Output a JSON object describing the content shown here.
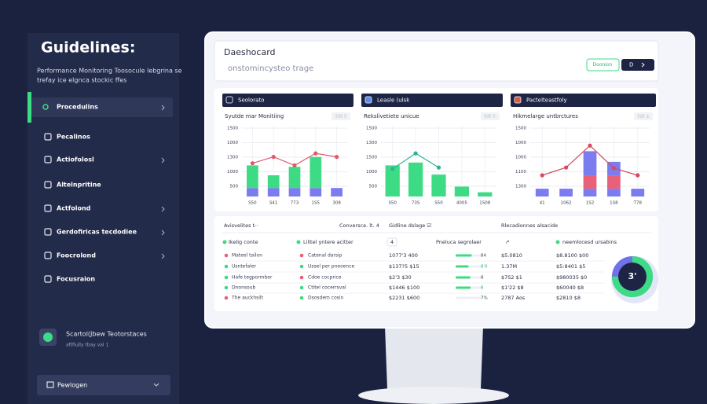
{
  "sidebar": {
    "title": "Guidelines:",
    "subtitle": [
      "Performance Monitoring Toosocule lebgrina se",
      "trefay ice elgnca stockic ffes"
    ],
    "items": [
      "Procedulins",
      "Pecalinos",
      "Actiofolosl",
      "Altelnpritine",
      "Actfolond",
      "Gerdofiricas tecdodiee",
      "Foocrolond",
      "Focusraion"
    ],
    "card": {
      "title": "Scartol(Jbew Teotorstaces",
      "subtitle": "aftfiully tbay val 1"
    },
    "footer_button": "Pewlogen"
  },
  "header": {
    "title": "Daeshocard",
    "subtitle": "onstomincysteo trage",
    "buttons": [
      "Doonion",
      "D"
    ]
  },
  "panels": [
    {
      "tab": "Seolorato",
      "title": "Syutde mar Monitiing",
      "badge": "5d5 5",
      "ylabels": [
        "1500",
        "1000",
        "1300",
        "1000",
        "500"
      ],
      "categories": [
        "S50",
        "S41",
        "773",
        "1S5",
        "308"
      ],
      "ylim": [
        0,
        100
      ],
      "bars": [
        {
          "color": "#7b7cf0",
          "values": [
            12,
            12,
            12,
            12,
            12
          ]
        },
        {
          "color": "#3ddc84",
          "values": [
            32,
            18,
            30,
            44,
            0
          ]
        }
      ],
      "line": {
        "color": "#e05a6a",
        "values": [
          47,
          56,
          44,
          61,
          56
        ]
      }
    },
    {
      "tab": "Leasle (ulsk",
      "title": "Rekslivetiete unicue",
      "badge": "5d5 5:",
      "ylabels": [
        "1500",
        "1300",
        "1500",
        "1000",
        "500"
      ],
      "categories": [
        "S50",
        "73S",
        "S50",
        "4005",
        "1S08"
      ],
      "ylim": [
        0,
        100
      ],
      "bars": [
        {
          "color": "#3ddc84",
          "values": [
            44,
            48,
            31,
            14,
            6
          ]
        }
      ],
      "line": {
        "color": "#2bb39a",
        "values": [
          39,
          61,
          41,
          null,
          null
        ]
      }
    },
    {
      "tab": "Pactelteastfoly",
      "title": "Hikmelarge untbrctures",
      "badge": "5d5 ±",
      "ylabels": [
        "1500",
        "1000",
        "1000",
        "1100",
        "1300"
      ],
      "categories": [
        "41",
        "1062",
        "1S2",
        "1S8",
        "T78"
      ],
      "ylim": [
        0,
        100
      ],
      "bars": [
        {
          "color": "#7b7cf0",
          "values": [
            11,
            11,
            11,
            11,
            11
          ]
        },
        {
          "color": "#e8607a",
          "values": [
            0,
            0,
            18,
            18,
            0
          ]
        },
        {
          "color": "#7b7cf0",
          "values": [
            0,
            0,
            35,
            20,
            0
          ]
        }
      ],
      "line": {
        "color": "#d9485f",
        "values": [
          30,
          41,
          72,
          40,
          30
        ]
      }
    }
  ],
  "table": {
    "sections": [
      "Avisvelites t-·",
      "Conversce. lt. 4",
      "Gidline dslage ☑",
      "Rlecadionnes alsacide"
    ],
    "columns": [
      "Ikelig conte",
      "Lilitel yntere acitter",
      "4",
      "Pneluca segrolaer",
      "↗",
      "neemlocesd ursabins"
    ],
    "rows": [
      {
        "a": "Mateel tailon",
        "a_color": "#e8607a",
        "b": "Catenal darsip",
        "b_color": "#e8607a",
        "amount": "1077'3 400",
        "progress": 62,
        "pct": "84",
        "c": "$5.0810",
        "d": "$8.8100 $00"
      },
      {
        "a": "Usntefaler",
        "a_color": "#3ddc84",
        "b": "Ussel per pneoence",
        "b_color": "#3ddc84",
        "amount": "$137?5 $15",
        "progress": 50,
        "pct": "8'0",
        "c": "1.37M",
        "d": "$5:8401 $5"
      },
      {
        "a": "Hafe tegpormber",
        "a_color": "#3ddc84",
        "b": "Cdoe cocprice",
        "b_color": "#e8607a",
        "amount": "$2'3 $30",
        "progress": 57,
        "pct": "8",
        "c": "$7S2 $1",
        "d": "$980035 $0"
      },
      {
        "a": "Dnonsoub",
        "a_color": "#3ddc84",
        "b": "Ctitel cocerrsval",
        "b_color": "#3ddc84",
        "amount": "$1446 $100",
        "progress": 58,
        "pct": "8",
        "c": "$1'22 $8",
        "d": "$60040 $8"
      },
      {
        "a": "The auckhsilt",
        "a_color": "#e8607a",
        "b": "Dsosdem cosin",
        "b_color": "#3ddc84",
        "amount": "$2231 $600",
        "progress": null,
        "pct": "7%",
        "c": "2787 Aos",
        "d": "$2810 $8"
      }
    ],
    "donut": {
      "label": "3'",
      "value": 75
    }
  }
}
